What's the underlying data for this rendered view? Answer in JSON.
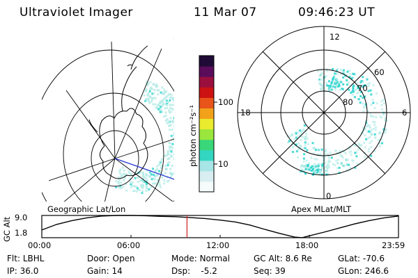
{
  "header": {
    "instrument": "Ultraviolet Imager",
    "date": "11 Mar 07",
    "time": "09:46:23 UT"
  },
  "left_panel": {
    "label": "Geographic Lat/Lon"
  },
  "right_panel": {
    "label": "Apex MLat/MLT",
    "mlt_labels": [
      "12",
      "18",
      "6",
      "0"
    ],
    "mlat_labels": [
      "60",
      "70",
      "80"
    ]
  },
  "colorbar": {
    "unit_label": "photon cm⁻²s⁻¹",
    "scale": "log",
    "ticks": [
      "100",
      "10"
    ]
  },
  "chart_data": {
    "type": "line",
    "title": "",
    "ylabel": "GC Alt",
    "yticks": [
      "9.0",
      "1.8"
    ],
    "xticks": [
      "00:00",
      "06:00",
      "12:00",
      "18:00",
      "23:59"
    ],
    "ylim": [
      1.8,
      9.0
    ],
    "x_hours": [
      0,
      1,
      2,
      3,
      4,
      5,
      6,
      7,
      8,
      9,
      10,
      11,
      12,
      13,
      14,
      15,
      16,
      17,
      17.5,
      18,
      19,
      20,
      21,
      22,
      23,
      23.98
    ],
    "values": [
      4.3,
      6.1,
      7.3,
      8.2,
      8.8,
      9.0,
      9.0,
      8.9,
      8.7,
      8.6,
      8.3,
      8.0,
      7.5,
      6.9,
      5.9,
      4.5,
      3.2,
      2.0,
      1.8,
      2.4,
      3.6,
      4.9,
      6.2,
      7.3,
      8.2,
      8.8
    ],
    "current_time_hours": 9.77,
    "grid": false,
    "color": "#000000",
    "marker_color": "#cc2020"
  },
  "footer": {
    "rows": [
      [
        {
          "k": "Flt:",
          "v": "LBHL"
        },
        {
          "k": "Door:",
          "v": "Open"
        },
        {
          "k": "Mode:",
          "v": "Normal"
        },
        {
          "k": "GC Alt:",
          "v": "8.6 Re"
        },
        {
          "k": "GLat:",
          "v": "-70.6"
        }
      ],
      [
        {
          "k": "IP:",
          "v": "36.0"
        },
        {
          "k": "Gain:",
          "v": "14"
        },
        {
          "k": "Dsp:",
          "v": "-5.2"
        },
        {
          "k": "Seq:",
          "v": "39"
        },
        {
          "k": "GLon:",
          "v": "246.6"
        }
      ]
    ]
  },
  "colors": {
    "aurora_main": "#33d6d0",
    "aurora_faint": "#b9ece8",
    "colorbar": [
      "#f6fbfb",
      "#d8eef0",
      "#a8e5e6",
      "#33d6c0",
      "#3ad67a",
      "#9ae63c",
      "#eaea2e",
      "#f2a21a",
      "#e8541a",
      "#cc1212",
      "#9a0f3e",
      "#5a0c5a",
      "#200b36"
    ]
  }
}
